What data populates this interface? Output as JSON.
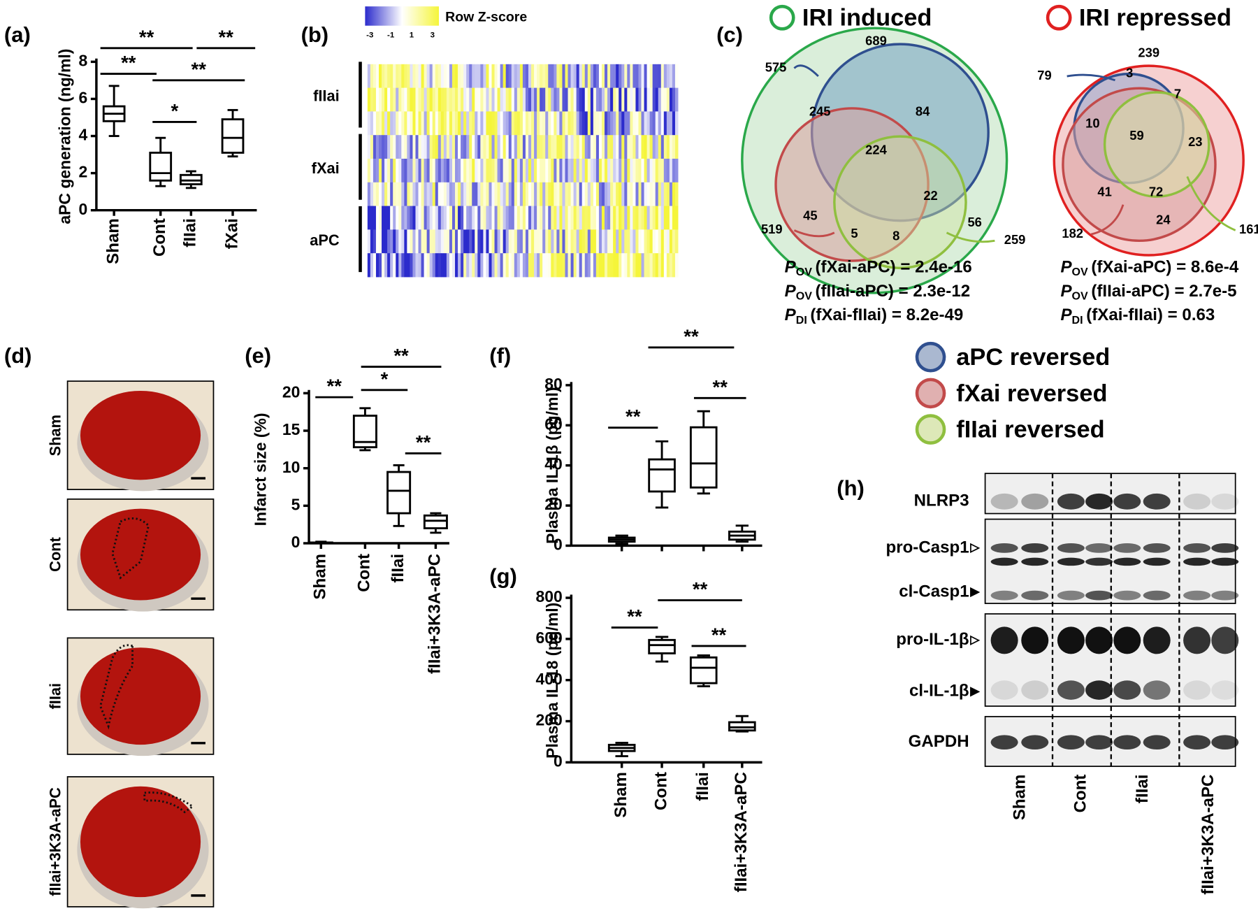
{
  "chart_data": [
    {
      "type": "box",
      "panel_label": "(a)",
      "y_label": "aPC generation (ng/ml)",
      "categories": [
        "Sham",
        "Cont",
        "fIIai",
        "fXai"
      ],
      "min": [
        4.0,
        1.3,
        1.2,
        2.9
      ],
      "q1": [
        4.8,
        1.6,
        1.4,
        3.1
      ],
      "median": [
        5.2,
        2.0,
        1.6,
        3.9
      ],
      "q3": [
        5.6,
        3.1,
        1.9,
        4.9
      ],
      "max": [
        6.7,
        3.9,
        2.1,
        5.4
      ],
      "ylim": [
        0,
        8
      ],
      "yticks": [
        0,
        2,
        4,
        6,
        8
      ],
      "annotations": [
        "**",
        "**",
        "**",
        "**",
        "*"
      ]
    },
    {
      "type": "box",
      "panel_label": "(e)",
      "y_label": "Infarct size (%)",
      "categories": [
        "Sham",
        "Cont",
        "fIIai",
        "fIIai+3K3A-aPC"
      ],
      "min": [
        0,
        12.4,
        2.3,
        1.4
      ],
      "q1": [
        0,
        12.8,
        4,
        2
      ],
      "median": [
        0.1,
        13.5,
        7,
        3
      ],
      "q3": [
        0.1,
        17,
        9.5,
        3.7
      ],
      "max": [
        0.2,
        18,
        10.4,
        4
      ],
      "ylim": [
        0,
        20
      ],
      "yticks": [
        0,
        5,
        10,
        15,
        20
      ],
      "annotations": [
        "**",
        "*",
        "**",
        "**"
      ]
    },
    {
      "type": "box",
      "panel_label": "(f)",
      "y_label": "Plasma IL-1β (pg/ml)",
      "categories": [
        null,
        null,
        null,
        null
      ],
      "min": [
        1,
        19,
        26,
        2
      ],
      "q1": [
        2,
        27,
        29,
        3
      ],
      "median": [
        3,
        38,
        41,
        5
      ],
      "q3": [
        4,
        43,
        59,
        7
      ],
      "max": [
        5,
        52,
        67,
        10
      ],
      "ylim": [
        0,
        80
      ],
      "yticks": [
        0,
        20,
        40,
        60,
        80
      ],
      "annotations": [
        "**",
        "**",
        "**"
      ]
    },
    {
      "type": "box",
      "panel_label": "(g)",
      "y_label": "Plasma IL-18 (pg/ml)",
      "categories": [
        "Sham",
        "Cont",
        "fIIai",
        "fIIai+3K3A-aPC"
      ],
      "min": [
        30,
        490,
        370,
        150
      ],
      "q1": [
        55,
        530,
        385,
        155
      ],
      "median": [
        70,
        570,
        460,
        170
      ],
      "q3": [
        85,
        595,
        510,
        195
      ],
      "max": [
        95,
        610,
        520,
        225
      ],
      "ylim": [
        0,
        800
      ],
      "yticks": [
        0,
        200,
        400,
        600,
        800
      ],
      "annotations": [
        "**",
        "**",
        "**"
      ]
    }
  ],
  "heatmap": {
    "panel_label": "(b)",
    "scale_title": "Row Z-score",
    "scale_ticks": [
      "-3",
      "-1",
      "1",
      "3"
    ],
    "groups": [
      "fIIai",
      "fXai",
      "aPC"
    ]
  },
  "venn": {
    "panel_label": "(c)",
    "induced": {
      "title": "IRI induced",
      "numbers": [
        689,
        575,
        245,
        84,
        224,
        22,
        45,
        5,
        8,
        56,
        519,
        259
      ],
      "p_values": [
        {
          "symbol": "P",
          "subscript": "OV",
          "text": "(fXai-aPC) = 2.4e-16"
        },
        {
          "symbol": "P",
          "subscript": "OV",
          "text": "(fIIai-aPC) = 2.3e-12"
        },
        {
          "symbol": "P",
          "subscript": "DI",
          "text": "(fXai-fIIai) = 8.2e-49"
        }
      ]
    },
    "repressed": {
      "title": "IRI repressed",
      "numbers": [
        239,
        79,
        3,
        7,
        10,
        59,
        23,
        41,
        72,
        24,
        182,
        161
      ],
      "p_values": [
        {
          "symbol": "P",
          "subscript": "OV",
          "text": "(fXai-aPC) = 8.6e-4"
        },
        {
          "symbol": "P",
          "subscript": "OV",
          "text": "(fIIai-aPC) = 2.7e-5"
        },
        {
          "symbol": "P",
          "subscript": "DI",
          "text": "(fXai-fIIai) = 0.63"
        }
      ]
    },
    "legend": [
      "aPC reversed",
      "fXai reversed",
      "fIIai reversed"
    ]
  },
  "photos": {
    "panel_label": "(d)",
    "groups": [
      "Sham",
      "Cont",
      "fIIai",
      "fIIai+3K3A-aPC"
    ]
  },
  "blot": {
    "panel_label": "(h)",
    "rows": [
      "NLRP3",
      "pro-Casp1",
      "cl-Casp1",
      "pro-IL-1β",
      "cl-IL-1β",
      "GAPDH"
    ],
    "lanes": [
      "Sham",
      "Cont",
      "fIIai",
      "fIIai+3K3A-aPC"
    ]
  }
}
